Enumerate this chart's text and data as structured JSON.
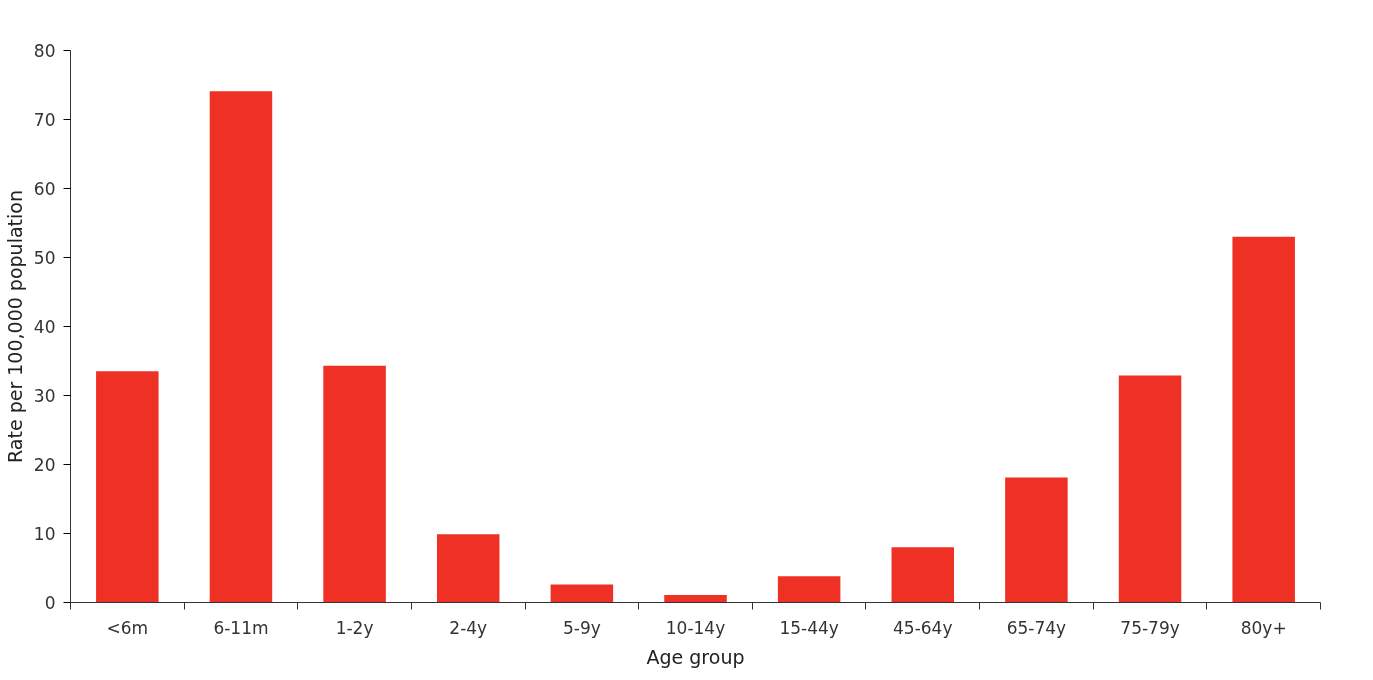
{
  "chart_data": {
    "type": "bar",
    "xlabel": "Age group",
    "ylabel": "Rate per 100,000 population",
    "categories": [
      "<6m",
      "6-11m",
      "1-2y",
      "2-4y",
      "5-9y",
      "10-14y",
      "15-44y",
      "45-64y",
      "65-74y",
      "75-79y",
      "80y+"
    ],
    "values": [
      33.5,
      74.1,
      34.3,
      9.9,
      2.6,
      1.1,
      3.8,
      8.0,
      18.1,
      32.9,
      53.0
    ],
    "color": "#ee3124",
    "ylim": [
      0,
      80
    ],
    "yticks": [
      0,
      10,
      20,
      30,
      40,
      50,
      60,
      70,
      80
    ],
    "grid": false
  }
}
